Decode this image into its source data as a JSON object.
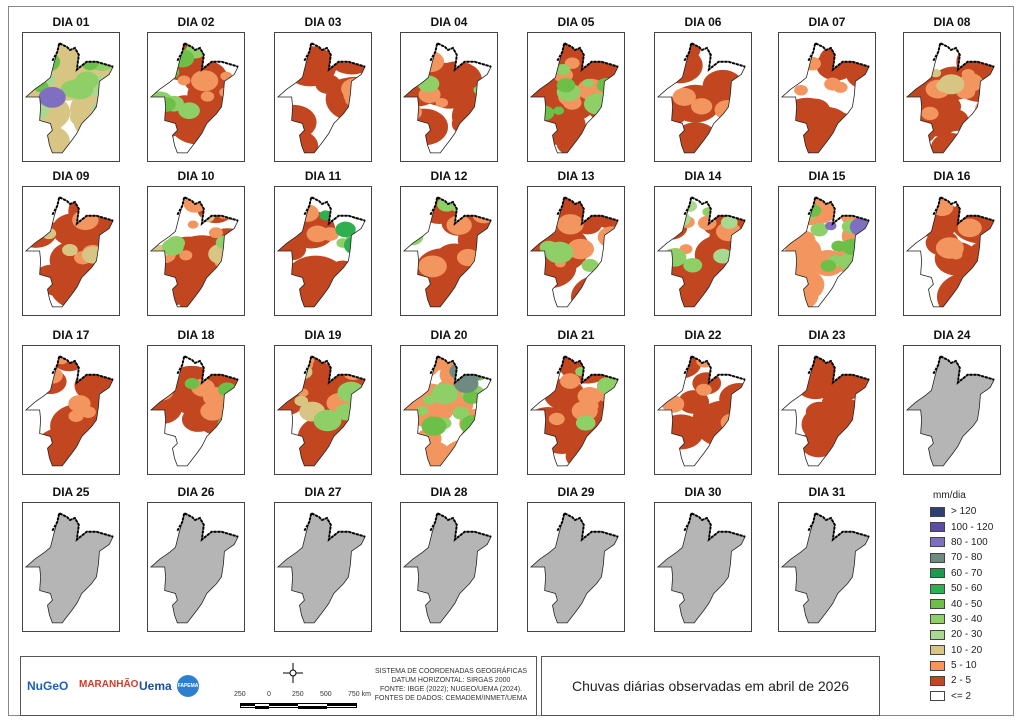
{
  "days": [
    {
      "label": "DIA 01",
      "classes": [
        "40 - 50",
        "30 - 40",
        "10 - 20",
        "20 - 30",
        "80 - 100"
      ],
      "dry": 0.05
    },
    {
      "label": "DIA 02",
      "classes": [
        "40 - 50",
        "5 - 10",
        "2 - 5",
        "30 - 40"
      ],
      "dry": 0.3
    },
    {
      "label": "DIA 03",
      "classes": [
        "5 - 10",
        "2 - 5"
      ],
      "dry": 0.7
    },
    {
      "label": "DIA 04",
      "classes": [
        "5 - 10",
        "2 - 5",
        "30 - 40"
      ],
      "dry": 0.4
    },
    {
      "label": "DIA 05",
      "classes": [
        "30 - 40",
        "40 - 50",
        "5 - 10",
        "2 - 5"
      ],
      "dry": 0.1
    },
    {
      "label": "DIA 06",
      "classes": [
        "5 - 10",
        "2 - 5"
      ],
      "dry": 0.65
    },
    {
      "label": "DIA 07",
      "classes": [
        "2 - 5",
        "5 - 10"
      ],
      "dry": 0.5
    },
    {
      "label": "DIA 08",
      "classes": [
        "5 - 10",
        "2 - 5",
        "10 - 20"
      ],
      "dry": 0.3
    },
    {
      "label": "DIA 09",
      "classes": [
        "10 - 20",
        "5 - 10",
        "2 - 5"
      ],
      "dry": 0.5
    },
    {
      "label": "DIA 10",
      "classes": [
        "5 - 10",
        "2 - 5",
        "30 - 40",
        "10 - 20"
      ],
      "dry": 0.3
    },
    {
      "label": "DIA 11",
      "classes": [
        "5 - 10",
        "30 - 40",
        "2 - 5",
        "50 - 60"
      ],
      "dry": 0.5
    },
    {
      "label": "DIA 12",
      "classes": [
        "30 - 40",
        "5 - 10",
        "2 - 5"
      ],
      "dry": 0.4
    },
    {
      "label": "DIA 13",
      "classes": [
        "5 - 10",
        "30 - 40",
        "2 - 5"
      ],
      "dry": 0.4
    },
    {
      "label": "DIA 14",
      "classes": [
        "30 - 40",
        "20 - 30",
        "5 - 10",
        "2 - 5"
      ],
      "dry": 0.35
    },
    {
      "label": "DIA 15",
      "classes": [
        "30 - 40",
        "40 - 50",
        "5 - 10",
        "80 - 100"
      ],
      "dry": 0.35
    },
    {
      "label": "DIA 16",
      "classes": [
        "2 - 5",
        "5 - 10"
      ],
      "dry": 0.7
    },
    {
      "label": "DIA 17",
      "classes": [
        "2 - 5",
        "5 - 10"
      ],
      "dry": 0.55
    },
    {
      "label": "DIA 18",
      "classes": [
        "5 - 10",
        "40 - 50",
        "2 - 5"
      ],
      "dry": 0.55
    },
    {
      "label": "DIA 19",
      "classes": [
        "10 - 20",
        "5 - 10",
        "30 - 40",
        "2 - 5"
      ],
      "dry": 0.1
    },
    {
      "label": "DIA 20",
      "classes": [
        "40 - 50",
        "30 - 40",
        "5 - 10",
        "70 - 80"
      ],
      "dry": 0.1
    },
    {
      "label": "DIA 21",
      "classes": [
        "5 - 10",
        "2 - 5",
        "30 - 40"
      ],
      "dry": 0.3
    },
    {
      "label": "DIA 22",
      "classes": [
        "5 - 10",
        "2 - 5"
      ],
      "dry": 0.75
    },
    {
      "label": "DIA 23",
      "classes": [
        "2 - 5"
      ],
      "dry": 0.4
    },
    {
      "label": "DIA 24",
      "classes": [],
      "dry": 0,
      "nodata": true
    },
    {
      "label": "DIA 25",
      "classes": [],
      "dry": 0,
      "nodata": true
    },
    {
      "label": "DIA 26",
      "classes": [],
      "dry": 0,
      "nodata": true
    },
    {
      "label": "DIA 27",
      "classes": [],
      "dry": 0,
      "nodata": true
    },
    {
      "label": "DIA 28",
      "classes": [],
      "dry": 0,
      "nodata": true
    },
    {
      "label": "DIA 29",
      "classes": [],
      "dry": 0,
      "nodata": true
    },
    {
      "label": "DIA 30",
      "classes": [],
      "dry": 0,
      "nodata": true
    },
    {
      "label": "DIA 31",
      "classes": [],
      "dry": 0,
      "nodata": true
    }
  ],
  "legend": {
    "title": "mm/dia",
    "items": [
      {
        "label": "> 120",
        "color": "#2e3f75"
      },
      {
        "label": "100 - 120",
        "color": "#5b4aa8"
      },
      {
        "label": "80 - 100",
        "color": "#7f6fc0"
      },
      {
        "label": "70 - 80",
        "color": "#6f8a80"
      },
      {
        "label": "60 - 70",
        "color": "#1e9a4a"
      },
      {
        "label": "50 - 60",
        "color": "#2fb050"
      },
      {
        "label": "40 - 50",
        "color": "#6cc047"
      },
      {
        "label": "30 - 40",
        "color": "#8ecf68"
      },
      {
        "label": "20 - 30",
        "color": "#a9d890"
      },
      {
        "label": "10 - 20",
        "color": "#d8c584"
      },
      {
        "label": "5 - 10",
        "color": "#f3955e"
      },
      {
        "label": "2 - 5",
        "color": "#c2461f"
      },
      {
        "label": "<= 2",
        "color": "#ffffff"
      }
    ]
  },
  "nodata_color": "#b5b5b5",
  "credits": {
    "logos": [
      "NuGeO",
      "MARANHÃO",
      "Uema",
      "FAPEMA"
    ],
    "scale_labels": [
      "250",
      "0",
      "250",
      "500",
      "750 km"
    ],
    "info": [
      "SISTEMA DE COORDENADAS GEOGRÁFICAS",
      "DATUM HORIZONTAL: SIRGAS 2000",
      "FONTE: IBGE (2022); NUGEO/UEMA (2024).",
      "FONTES DE DADOS: CEMADEM/INMET/UEMA"
    ]
  },
  "map_title": "Chuvas diárias observadas em abril de 2026"
}
